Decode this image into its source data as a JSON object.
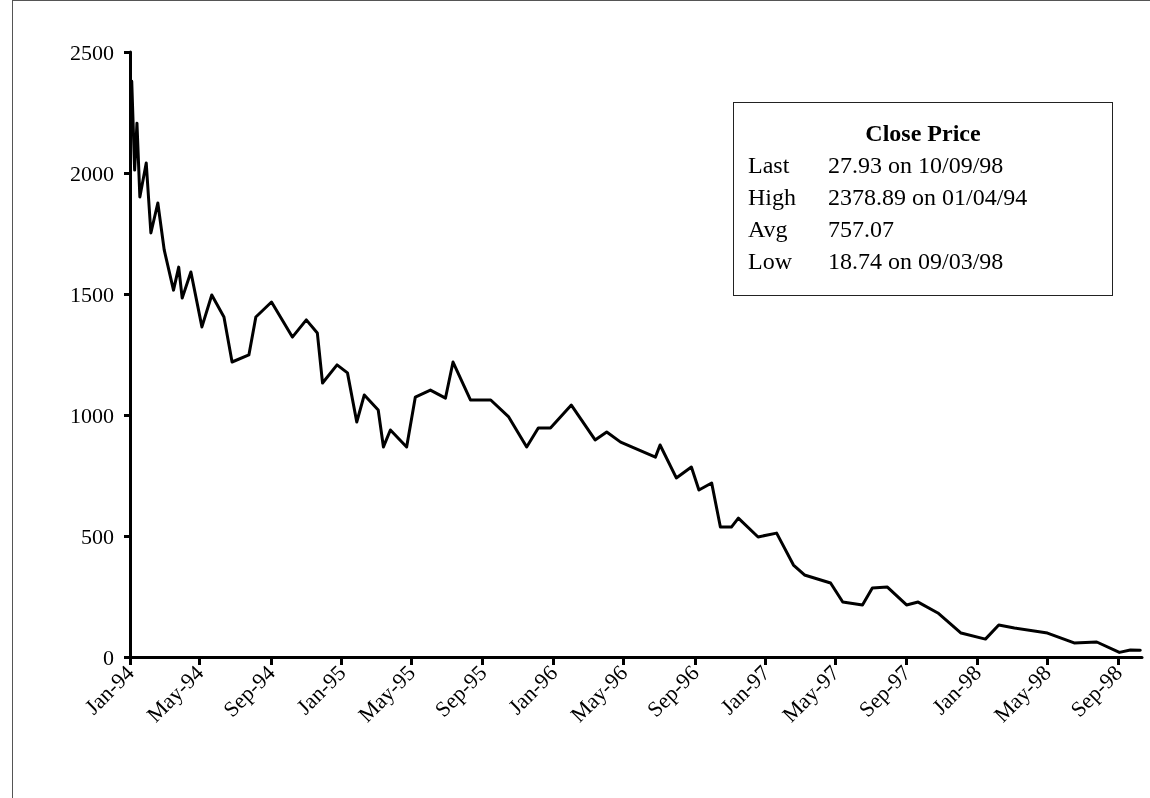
{
  "chart_data": {
    "type": "line",
    "x": [
      "1994-01-04",
      "1994-01-09",
      "1994-01-13",
      "1994-01-18",
      "1994-01-29",
      "1994-02-06",
      "1994-02-18",
      "1994-03-01",
      "1994-03-17",
      "1994-03-26",
      "1994-04-01",
      "1994-04-16",
      "1994-05-05",
      "1994-05-22",
      "1994-06-12",
      "1994-06-26",
      "1994-07-25",
      "1994-08-06",
      "1994-09-02",
      "1994-10-08",
      "1994-11-01",
      "1994-11-20",
      "1994-11-29",
      "1994-12-24",
      "1995-01-11",
      "1995-01-27",
      "1995-02-09",
      "1995-03-05",
      "1995-03-14",
      "1995-03-26",
      "1995-04-23",
      "1995-05-08",
      "1995-06-03",
      "1995-06-29",
      "1995-07-12",
      "1995-08-11",
      "1995-09-15",
      "1995-10-16",
      "1995-11-16",
      "1995-12-06",
      "1995-12-27",
      "1996-02-01",
      "1996-03-13",
      "1996-04-02",
      "1996-04-26",
      "1996-06-25",
      "1996-07-03",
      "1996-07-31",
      "1996-08-26",
      "1996-09-08",
      "1996-09-30",
      "1996-10-15",
      "1996-11-03",
      "1996-11-15",
      "1996-12-19",
      "1997-01-20",
      "1997-02-18",
      "1997-03-09",
      "1997-04-23",
      "1997-05-14",
      "1997-06-17",
      "1997-07-04",
      "1997-07-30",
      "1997-09-01",
      "1997-09-21",
      "1997-10-25",
      "1997-12-04",
      "1998-01-15",
      "1998-02-07",
      "1998-03-06",
      "1998-05-02",
      "1998-06-17",
      "1998-07-26",
      "1998-09-03",
      "1998-09-22",
      "1998-10-09"
    ],
    "series": [
      {
        "color": "#000000",
        "values": [
          2379,
          2012,
          2206,
          1901,
          2041,
          1752,
          1876,
          1682,
          1516,
          1611,
          1483,
          1591,
          1364,
          1496,
          1405,
          1219,
          1248,
          1405,
          1467,
          1322,
          1393,
          1339,
          1132,
          1207,
          1174,
          971,
          1083,
          1021,
          868,
          938,
          868,
          1074,
          1103,
          1070,
          1219,
          1062,
          1062,
          992,
          868,
          946,
          946,
          1041,
          897,
          930,
          888,
          826,
          876,
          740,
          785,
          690,
          719,
          537,
          537,
          574,
          496,
          512,
          380,
          339,
          306,
          227,
          215,
          285,
          289,
          215,
          227,
          182,
          99,
          74,
          132,
          120,
          99,
          58,
          62,
          19,
          29,
          28
        ]
      }
    ],
    "xlim": [
      "1994-01-01",
      "1998-10-12"
    ],
    "xticks": [
      {
        "value": "1994-01-01",
        "label": "Jan-94"
      },
      {
        "value": "1994-05-01",
        "label": "May-94"
      },
      {
        "value": "1994-09-01",
        "label": "Sep-94"
      },
      {
        "value": "1995-01-01",
        "label": "Jan-95"
      },
      {
        "value": "1995-05-01",
        "label": "May-95"
      },
      {
        "value": "1995-09-01",
        "label": "Sep-95"
      },
      {
        "value": "1996-01-01",
        "label": "Jan-96"
      },
      {
        "value": "1996-05-01",
        "label": "May-96"
      },
      {
        "value": "1996-09-01",
        "label": "Sep-96"
      },
      {
        "value": "1997-01-01",
        "label": "Jan-97"
      },
      {
        "value": "1997-05-01",
        "label": "May-97"
      },
      {
        "value": "1997-09-01",
        "label": "Sep-97"
      },
      {
        "value": "1998-01-01",
        "label": "Jan-98"
      },
      {
        "value": "1998-05-01",
        "label": "May-98"
      },
      {
        "value": "1998-09-01",
        "label": "Sep-98"
      }
    ],
    "ylim": [
      0,
      2500
    ],
    "yticks": [
      0,
      500,
      1000,
      1500,
      2000,
      2500
    ],
    "grid": false,
    "marker": "none",
    "line_style": "solid",
    "annotations": [
      "Close Price",
      "Last 27.93 on 10/09/98",
      "High 2378.89 on 01/04/94",
      "Avg 757.07",
      "Low 18.74 on 09/03/98"
    ]
  }
}
